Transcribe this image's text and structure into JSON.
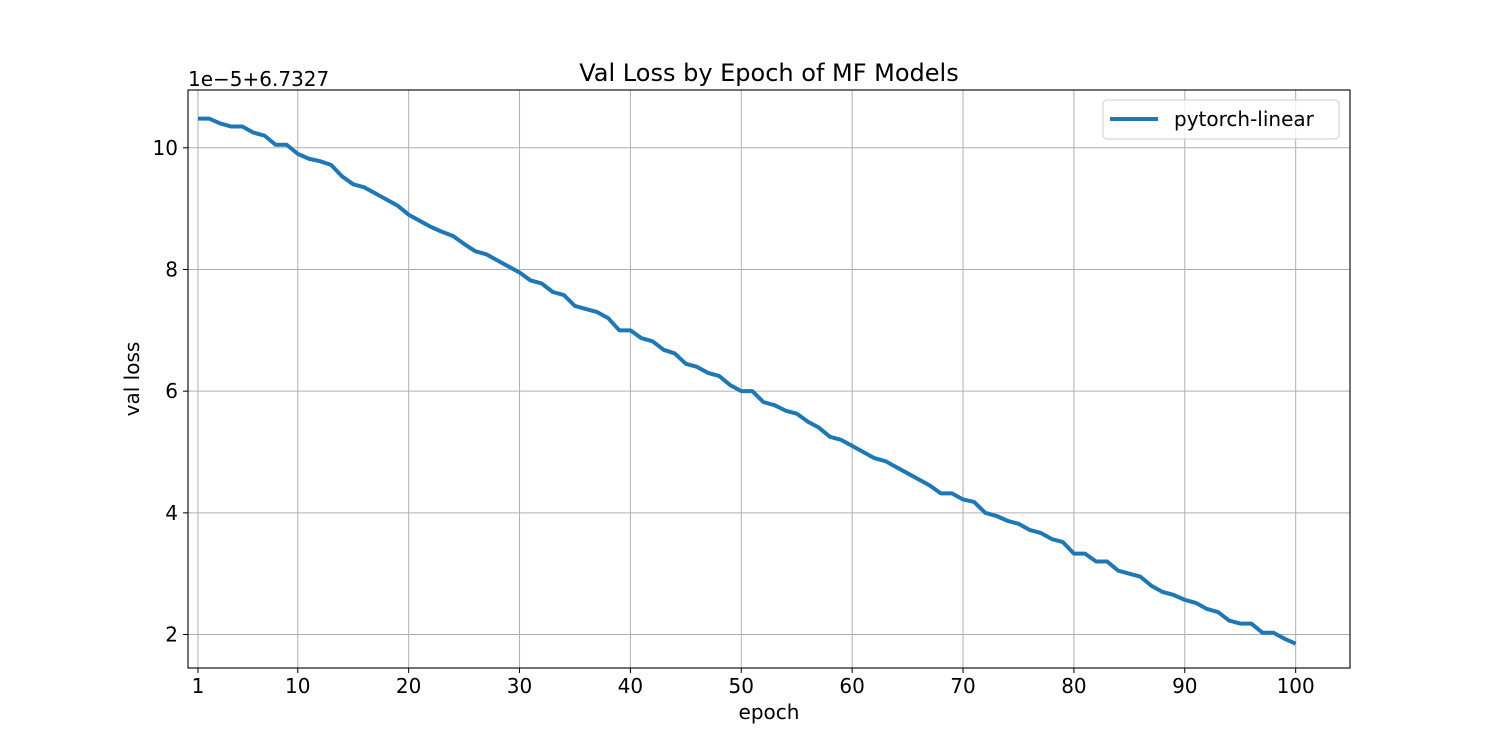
{
  "chart_data": {
    "type": "line",
    "title": "Val Loss by Epoch of MF Models",
    "xlabel": "epoch",
    "ylabel": "val loss",
    "y_offset_label": "1e−5+6.7327",
    "xlim": [
      0.1,
      104.9
    ],
    "ylim": [
      1.45,
      10.95
    ],
    "x_ticks": [
      1,
      10,
      20,
      30,
      40,
      50,
      60,
      70,
      80,
      90,
      100
    ],
    "y_ticks": [
      2,
      4,
      6,
      8,
      10
    ],
    "grid": true,
    "legend_position": "top-right",
    "series": [
      {
        "name": "pytorch-linear",
        "color": "#1f77b4",
        "x": [
          1,
          2,
          3,
          4,
          5,
          6,
          7,
          8,
          9,
          10,
          11,
          12,
          13,
          14,
          15,
          16,
          17,
          18,
          19,
          20,
          21,
          22,
          23,
          24,
          25,
          26,
          27,
          28,
          29,
          30,
          31,
          32,
          33,
          34,
          35,
          36,
          37,
          38,
          39,
          40,
          41,
          42,
          43,
          44,
          45,
          46,
          47,
          48,
          49,
          50,
          51,
          52,
          53,
          54,
          55,
          56,
          57,
          58,
          59,
          60,
          61,
          62,
          63,
          64,
          65,
          66,
          67,
          68,
          69,
          70,
          71,
          72,
          73,
          74,
          75,
          76,
          77,
          78,
          79,
          80,
          81,
          82,
          83,
          84,
          85,
          86,
          87,
          88,
          89,
          90,
          91,
          92,
          93,
          94,
          95,
          96,
          97,
          98,
          99,
          100
        ],
        "y": [
          10.48,
          10.48,
          10.4,
          10.35,
          10.35,
          10.25,
          10.2,
          10.05,
          10.05,
          9.9,
          9.82,
          9.78,
          9.72,
          9.53,
          9.4,
          9.35,
          9.25,
          9.15,
          9.05,
          8.9,
          8.8,
          8.7,
          8.62,
          8.55,
          8.42,
          8.3,
          8.25,
          8.15,
          8.05,
          7.95,
          7.82,
          7.77,
          7.63,
          7.58,
          7.4,
          7.35,
          7.3,
          7.2,
          7.0,
          7.0,
          6.87,
          6.82,
          6.68,
          6.62,
          6.45,
          6.4,
          6.3,
          6.25,
          6.1,
          6.0,
          6.0,
          5.82,
          5.77,
          5.68,
          5.63,
          5.5,
          5.4,
          5.25,
          5.2,
          5.1,
          5.0,
          4.9,
          4.85,
          4.75,
          4.65,
          4.55,
          4.45,
          4.32,
          4.32,
          4.22,
          4.18,
          4.0,
          3.95,
          3.87,
          3.82,
          3.72,
          3.67,
          3.57,
          3.52,
          3.33,
          3.33,
          3.2,
          3.2,
          3.05,
          3.0,
          2.95,
          2.8,
          2.7,
          2.65,
          2.57,
          2.52,
          2.42,
          2.37,
          2.23,
          2.18,
          2.18,
          2.03,
          2.03,
          1.93,
          1.85
        ]
      }
    ]
  }
}
